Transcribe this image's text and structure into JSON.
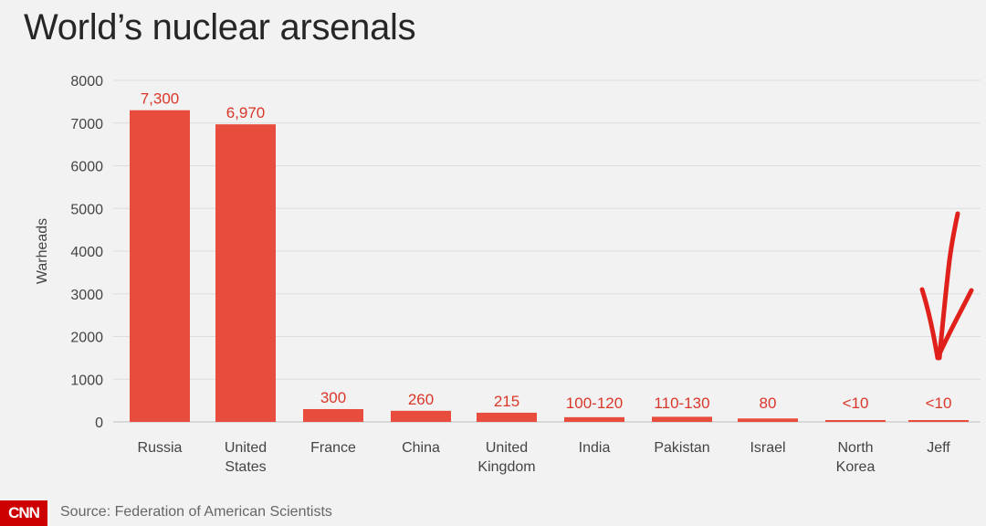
{
  "chart_data": {
    "type": "bar",
    "title": "World’s nuclear arsenals",
    "ylabel": "Warheads",
    "xlabel": "",
    "ylim": [
      0,
      8000
    ],
    "yticks": [
      0,
      1000,
      2000,
      3000,
      4000,
      5000,
      6000,
      7000,
      8000
    ],
    "grid": true,
    "bar_color": "#e84c3d",
    "label_color": "#d9372a",
    "categories": [
      [
        "Russia"
      ],
      [
        "United",
        "States"
      ],
      [
        "France"
      ],
      [
        "China"
      ],
      [
        "United",
        "Kingdom"
      ],
      [
        "India"
      ],
      [
        "Pakistan"
      ],
      [
        "Israel"
      ],
      [
        "North",
        "Korea"
      ],
      [
        "Jeff"
      ]
    ],
    "values": [
      7300,
      6970,
      300,
      260,
      215,
      110,
      120,
      80,
      10,
      10
    ],
    "data_labels": [
      "7,300",
      "6,970",
      "300",
      "260",
      "215",
      "100-120",
      "110-130",
      "80",
      "<10",
      "<10"
    ]
  },
  "annotation": {
    "type": "hand-drawn-arrow",
    "target": "Jeff",
    "color": "#e0201b"
  },
  "footer": {
    "logo": "CNN",
    "source": "Source: Federation of American Scientists"
  }
}
